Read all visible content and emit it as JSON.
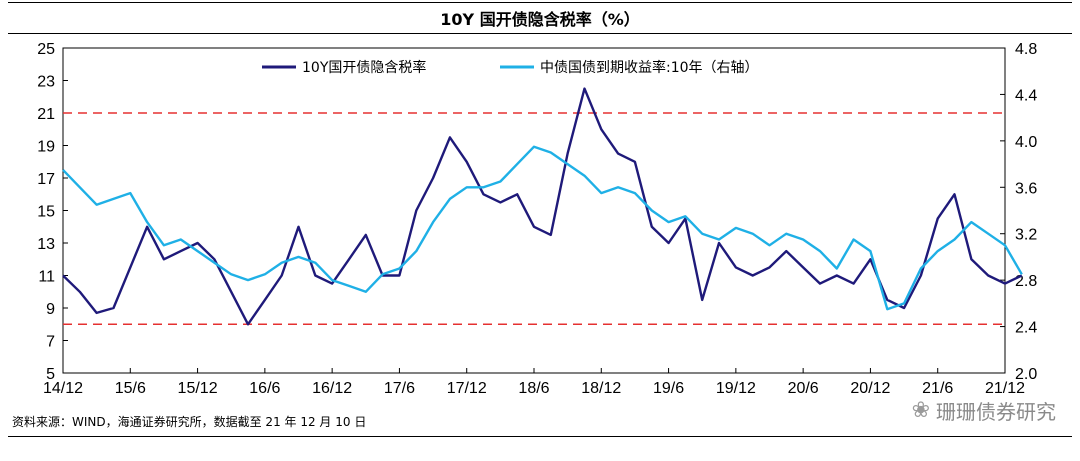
{
  "chart_data": {
    "type": "line",
    "title": "10Y 国开债隐含税率（%）",
    "x_ticks": [
      "14/12",
      "15/6",
      "15/12",
      "16/6",
      "16/12",
      "17/6",
      "17/12",
      "18/6",
      "18/12",
      "19/6",
      "19/12",
      "20/6",
      "20/12",
      "21/6",
      "21/12"
    ],
    "y_left": {
      "ylim": [
        5,
        25
      ],
      "ticks": [
        "5",
        "7",
        "9",
        "11",
        "13",
        "15",
        "17",
        "19",
        "21",
        "23",
        "25"
      ]
    },
    "y_right": {
      "ylim": [
        2.0,
        4.8
      ],
      "ticks": [
        "2.0",
        "2.4",
        "2.8",
        "3.2",
        "3.6",
        "4.0",
        "4.4",
        "4.8"
      ]
    },
    "reference_lines": [
      {
        "axis": "left",
        "value": 21,
        "style": "dashed",
        "color": "#e53030"
      },
      {
        "axis": "left",
        "value": 8,
        "style": "dashed",
        "color": "#e53030"
      }
    ],
    "series": [
      {
        "name": "10Y国开债隐含税率",
        "axis": "left",
        "color": "#1f1a7a",
        "x": [
          0,
          0.25,
          0.5,
          0.75,
          1,
          1.25,
          1.5,
          1.75,
          2,
          2.25,
          2.5,
          2.75,
          3,
          3.25,
          3.5,
          3.75,
          4,
          4.25,
          4.5,
          4.75,
          5,
          5.25,
          5.5,
          5.75,
          6,
          6.25,
          6.5,
          6.75,
          7,
          7.25,
          7.5,
          7.75,
          8,
          8.25,
          8.5,
          8.75,
          9,
          9.25,
          9.5,
          9.75,
          10,
          10.25,
          10.5,
          10.75,
          11,
          11.25,
          11.5,
          11.75,
          12,
          12.25,
          12.5,
          12.75,
          13,
          13.25,
          13.5,
          13.75,
          14,
          14.25
        ],
        "values": [
          11,
          10,
          8.7,
          9,
          11.5,
          14,
          12,
          12.5,
          13,
          12,
          10,
          8,
          9.5,
          11,
          14,
          11,
          10.5,
          12,
          13.5,
          11,
          11,
          15,
          17,
          19.5,
          18,
          16,
          15.5,
          16,
          14,
          13.5,
          18.5,
          22.5,
          20,
          18.5,
          18,
          14,
          13,
          14.5,
          9.5,
          13,
          11.5,
          11,
          11.5,
          12.5,
          11.5,
          10.5,
          11,
          10.5,
          12,
          9.5,
          9,
          11,
          14.5,
          16,
          12,
          11,
          10.5,
          11
        ]
      },
      {
        "name": "中债国债到期收益率:10年（右轴）",
        "axis": "right",
        "color": "#1fb0e6",
        "x": [
          0,
          0.25,
          0.5,
          0.75,
          1,
          1.25,
          1.5,
          1.75,
          2,
          2.25,
          2.5,
          2.75,
          3,
          3.25,
          3.5,
          3.75,
          4,
          4.25,
          4.5,
          4.75,
          5,
          5.25,
          5.5,
          5.75,
          6,
          6.25,
          6.5,
          6.75,
          7,
          7.25,
          7.5,
          7.75,
          8,
          8.25,
          8.5,
          8.75,
          9,
          9.25,
          9.5,
          9.75,
          10,
          10.25,
          10.5,
          10.75,
          11,
          11.25,
          11.5,
          11.75,
          12,
          12.25,
          12.5,
          12.75,
          13,
          13.25,
          13.5,
          13.75,
          14,
          14.25
        ],
        "values": [
          3.75,
          3.6,
          3.45,
          3.5,
          3.55,
          3.3,
          3.1,
          3.15,
          3.05,
          2.95,
          2.85,
          2.8,
          2.85,
          2.95,
          3.0,
          2.95,
          2.8,
          2.75,
          2.7,
          2.85,
          2.9,
          3.05,
          3.3,
          3.5,
          3.6,
          3.6,
          3.65,
          3.8,
          3.95,
          3.9,
          3.8,
          3.7,
          3.55,
          3.6,
          3.55,
          3.4,
          3.3,
          3.35,
          3.2,
          3.15,
          3.25,
          3.2,
          3.1,
          3.2,
          3.15,
          3.05,
          2.9,
          3.15,
          3.05,
          2.55,
          2.6,
          2.9,
          3.05,
          3.15,
          3.3,
          3.2,
          3.1,
          2.85
        ]
      }
    ],
    "source_note": "资料来源：WIND，海通证券研究所，数据截至 21 年 12 月 10 日"
  },
  "watermark": {
    "text": "珊珊债券研究",
    "icon": "wechat-icon"
  }
}
